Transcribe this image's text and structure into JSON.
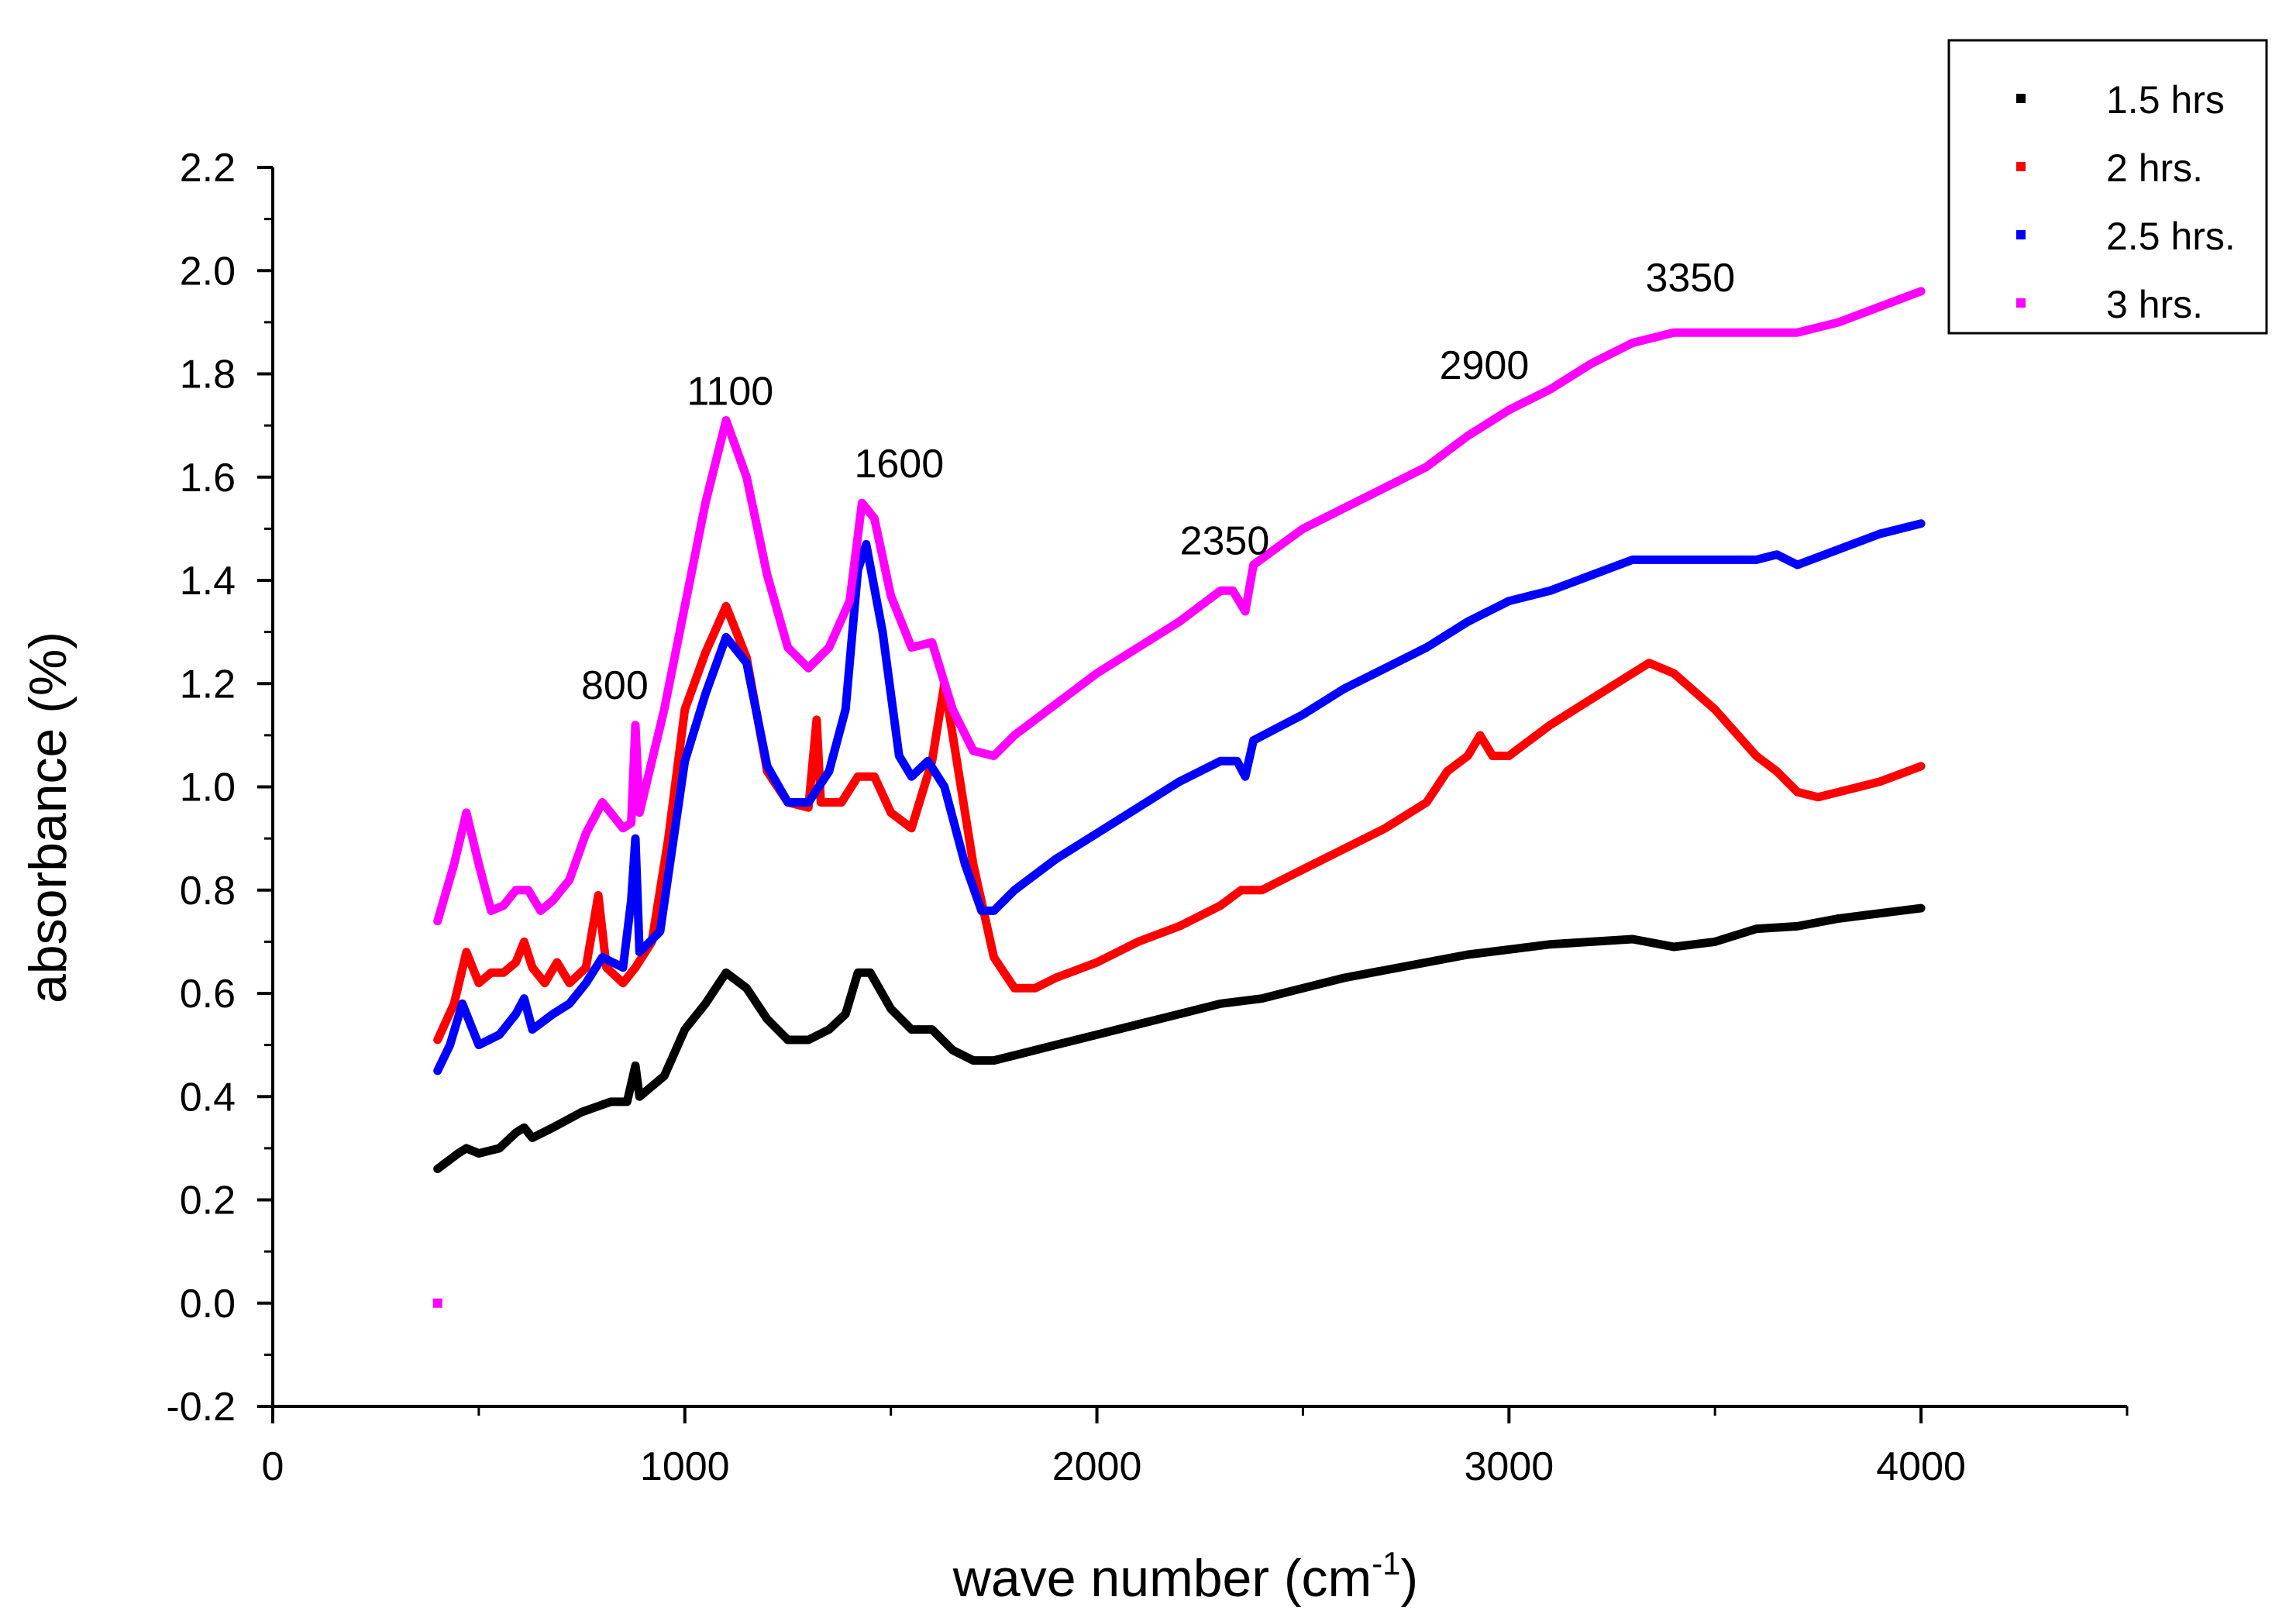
{
  "chart_data": {
    "type": "line",
    "title": "",
    "xlabel": "wave number (cm",
    "xlabel_sup": "-1",
    "xlabel_close": ")",
    "ylabel": "absorbance (%)",
    "xlim": [
      0,
      4500
    ],
    "ylim": [
      -0.2,
      2.2
    ],
    "x_ticks": [
      0,
      1000,
      2000,
      3000,
      4000
    ],
    "x_tick_labels": [
      "0",
      "1000",
      "2000",
      "3000",
      "4000"
    ],
    "y_ticks": [
      -0.2,
      0.0,
      0.2,
      0.4,
      0.6,
      0.8,
      1.0,
      1.2,
      1.4,
      1.6,
      1.8,
      2.0,
      2.2
    ],
    "y_tick_labels": [
      "-0.2",
      "0.0",
      "0.2",
      "0.4",
      "0.6",
      "0.8",
      "1.0",
      "1.2",
      "1.4",
      "1.6",
      "1.8",
      "2.0",
      "2.2"
    ],
    "grid": false,
    "legend_position": "top-right",
    "annotations": [
      {
        "text": "800",
        "x": 830,
        "y": 1.17
      },
      {
        "text": "1100",
        "x": 1110,
        "y": 1.74
      },
      {
        "text": "1600",
        "x": 1520,
        "y": 1.6
      },
      {
        "text": "2350",
        "x": 2310,
        "y": 1.45
      },
      {
        "text": "2900",
        "x": 2940,
        "y": 1.79
      },
      {
        "text": "3350",
        "x": 3440,
        "y": 1.96
      }
    ],
    "stray_points": [
      {
        "series": "3 hrs.",
        "x": 400,
        "y": 0.0
      }
    ],
    "series": [
      {
        "name": "1.5 hrs",
        "color": "#000000",
        "points": [
          [
            400,
            0.26
          ],
          [
            450,
            0.29
          ],
          [
            470,
            0.3
          ],
          [
            500,
            0.29
          ],
          [
            550,
            0.3
          ],
          [
            590,
            0.33
          ],
          [
            610,
            0.34
          ],
          [
            630,
            0.32
          ],
          [
            680,
            0.34
          ],
          [
            750,
            0.37
          ],
          [
            820,
            0.39
          ],
          [
            860,
            0.39
          ],
          [
            880,
            0.46
          ],
          [
            890,
            0.4
          ],
          [
            950,
            0.44
          ],
          [
            1000,
            0.53
          ],
          [
            1050,
            0.58
          ],
          [
            1100,
            0.64
          ],
          [
            1150,
            0.61
          ],
          [
            1200,
            0.55
          ],
          [
            1250,
            0.51
          ],
          [
            1300,
            0.51
          ],
          [
            1350,
            0.53
          ],
          [
            1390,
            0.56
          ],
          [
            1420,
            0.64
          ],
          [
            1450,
            0.64
          ],
          [
            1500,
            0.57
          ],
          [
            1550,
            0.53
          ],
          [
            1600,
            0.53
          ],
          [
            1650,
            0.49
          ],
          [
            1700,
            0.47
          ],
          [
            1750,
            0.47
          ],
          [
            1800,
            0.48
          ],
          [
            1900,
            0.5
          ],
          [
            2000,
            0.52
          ],
          [
            2100,
            0.54
          ],
          [
            2200,
            0.56
          ],
          [
            2300,
            0.58
          ],
          [
            2400,
            0.59
          ],
          [
            2500,
            0.61
          ],
          [
            2600,
            0.63
          ],
          [
            2700,
            0.645
          ],
          [
            2800,
            0.66
          ],
          [
            2900,
            0.675
          ],
          [
            3000,
            0.685
          ],
          [
            3100,
            0.695
          ],
          [
            3200,
            0.7
          ],
          [
            3300,
            0.705
          ],
          [
            3400,
            0.69
          ],
          [
            3500,
            0.7
          ],
          [
            3600,
            0.725
          ],
          [
            3700,
            0.73
          ],
          [
            3800,
            0.745
          ],
          [
            3900,
            0.755
          ],
          [
            4000,
            0.765
          ]
        ]
      },
      {
        "name": "2 hrs.",
        "color": "#ff0000",
        "points": [
          [
            400,
            0.51
          ],
          [
            440,
            0.58
          ],
          [
            470,
            0.68
          ],
          [
            500,
            0.62
          ],
          [
            530,
            0.64
          ],
          [
            560,
            0.64
          ],
          [
            590,
            0.66
          ],
          [
            610,
            0.7
          ],
          [
            630,
            0.65
          ],
          [
            660,
            0.62
          ],
          [
            690,
            0.66
          ],
          [
            720,
            0.62
          ],
          [
            760,
            0.65
          ],
          [
            790,
            0.79
          ],
          [
            810,
            0.65
          ],
          [
            850,
            0.62
          ],
          [
            880,
            0.65
          ],
          [
            920,
            0.7
          ],
          [
            960,
            0.9
          ],
          [
            1000,
            1.15
          ],
          [
            1050,
            1.26
          ],
          [
            1100,
            1.35
          ],
          [
            1150,
            1.25
          ],
          [
            1200,
            1.03
          ],
          [
            1250,
            0.97
          ],
          [
            1300,
            0.96
          ],
          [
            1320,
            1.13
          ],
          [
            1330,
            0.97
          ],
          [
            1380,
            0.97
          ],
          [
            1420,
            1.02
          ],
          [
            1460,
            1.02
          ],
          [
            1500,
            0.95
          ],
          [
            1550,
            0.92
          ],
          [
            1600,
            1.05
          ],
          [
            1630,
            1.2
          ],
          [
            1660,
            1.05
          ],
          [
            1700,
            0.85
          ],
          [
            1750,
            0.67
          ],
          [
            1800,
            0.61
          ],
          [
            1850,
            0.61
          ],
          [
            1900,
            0.63
          ],
          [
            2000,
            0.66
          ],
          [
            2100,
            0.7
          ],
          [
            2200,
            0.73
          ],
          [
            2300,
            0.77
          ],
          [
            2350,
            0.8
          ],
          [
            2400,
            0.8
          ],
          [
            2500,
            0.84
          ],
          [
            2600,
            0.88
          ],
          [
            2700,
            0.92
          ],
          [
            2800,
            0.97
          ],
          [
            2850,
            1.03
          ],
          [
            2900,
            1.06
          ],
          [
            2930,
            1.1
          ],
          [
            2960,
            1.06
          ],
          [
            3000,
            1.06
          ],
          [
            3100,
            1.12
          ],
          [
            3200,
            1.17
          ],
          [
            3300,
            1.22
          ],
          [
            3340,
            1.24
          ],
          [
            3400,
            1.22
          ],
          [
            3500,
            1.15
          ],
          [
            3600,
            1.06
          ],
          [
            3650,
            1.03
          ],
          [
            3700,
            0.99
          ],
          [
            3750,
            0.98
          ],
          [
            3800,
            0.99
          ],
          [
            3900,
            1.01
          ],
          [
            4000,
            1.04
          ]
        ]
      },
      {
        "name": "2.5 hrs.",
        "color": "#0000ff",
        "points": [
          [
            400,
            0.45
          ],
          [
            430,
            0.5
          ],
          [
            460,
            0.58
          ],
          [
            500,
            0.5
          ],
          [
            550,
            0.52
          ],
          [
            590,
            0.56
          ],
          [
            610,
            0.59
          ],
          [
            630,
            0.53
          ],
          [
            680,
            0.56
          ],
          [
            720,
            0.58
          ],
          [
            760,
            0.62
          ],
          [
            800,
            0.67
          ],
          [
            850,
            0.65
          ],
          [
            870,
            0.78
          ],
          [
            880,
            0.9
          ],
          [
            890,
            0.68
          ],
          [
            940,
            0.72
          ],
          [
            1000,
            1.05
          ],
          [
            1050,
            1.18
          ],
          [
            1100,
            1.29
          ],
          [
            1150,
            1.24
          ],
          [
            1200,
            1.04
          ],
          [
            1250,
            0.97
          ],
          [
            1300,
            0.97
          ],
          [
            1350,
            1.03
          ],
          [
            1390,
            1.15
          ],
          [
            1420,
            1.42
          ],
          [
            1440,
            1.47
          ],
          [
            1480,
            1.3
          ],
          [
            1520,
            1.06
          ],
          [
            1550,
            1.02
          ],
          [
            1590,
            1.05
          ],
          [
            1630,
            1.0
          ],
          [
            1680,
            0.85
          ],
          [
            1720,
            0.76
          ],
          [
            1750,
            0.76
          ],
          [
            1800,
            0.8
          ],
          [
            1900,
            0.86
          ],
          [
            2000,
            0.91
          ],
          [
            2100,
            0.96
          ],
          [
            2200,
            1.01
          ],
          [
            2300,
            1.05
          ],
          [
            2340,
            1.05
          ],
          [
            2360,
            1.02
          ],
          [
            2380,
            1.09
          ],
          [
            2500,
            1.14
          ],
          [
            2600,
            1.19
          ],
          [
            2700,
            1.23
          ],
          [
            2800,
            1.27
          ],
          [
            2900,
            1.32
          ],
          [
            3000,
            1.36
          ],
          [
            3100,
            1.38
          ],
          [
            3200,
            1.41
          ],
          [
            3300,
            1.44
          ],
          [
            3400,
            1.44
          ],
          [
            3500,
            1.44
          ],
          [
            3600,
            1.44
          ],
          [
            3650,
            1.45
          ],
          [
            3700,
            1.43
          ],
          [
            3800,
            1.46
          ],
          [
            3900,
            1.49
          ],
          [
            4000,
            1.51
          ]
        ]
      },
      {
        "name": "3 hrs.",
        "color": "#ff00ff",
        "points": [
          [
            400,
            0.74
          ],
          [
            440,
            0.85
          ],
          [
            470,
            0.95
          ],
          [
            500,
            0.85
          ],
          [
            530,
            0.76
          ],
          [
            560,
            0.77
          ],
          [
            590,
            0.8
          ],
          [
            620,
            0.8
          ],
          [
            650,
            0.76
          ],
          [
            680,
            0.78
          ],
          [
            720,
            0.82
          ],
          [
            760,
            0.91
          ],
          [
            800,
            0.97
          ],
          [
            850,
            0.92
          ],
          [
            870,
            0.93
          ],
          [
            880,
            1.12
          ],
          [
            890,
            0.95
          ],
          [
            950,
            1.15
          ],
          [
            1000,
            1.35
          ],
          [
            1050,
            1.55
          ],
          [
            1100,
            1.71
          ],
          [
            1150,
            1.6
          ],
          [
            1200,
            1.41
          ],
          [
            1250,
            1.27
          ],
          [
            1300,
            1.23
          ],
          [
            1350,
            1.27
          ],
          [
            1400,
            1.36
          ],
          [
            1430,
            1.55
          ],
          [
            1460,
            1.52
          ],
          [
            1500,
            1.37
          ],
          [
            1550,
            1.27
          ],
          [
            1600,
            1.28
          ],
          [
            1650,
            1.15
          ],
          [
            1700,
            1.07
          ],
          [
            1750,
            1.06
          ],
          [
            1800,
            1.1
          ],
          [
            1900,
            1.16
          ],
          [
            2000,
            1.22
          ],
          [
            2100,
            1.27
          ],
          [
            2200,
            1.32
          ],
          [
            2300,
            1.38
          ],
          [
            2330,
            1.38
          ],
          [
            2360,
            1.34
          ],
          [
            2380,
            1.43
          ],
          [
            2500,
            1.5
          ],
          [
            2600,
            1.54
          ],
          [
            2700,
            1.58
          ],
          [
            2800,
            1.62
          ],
          [
            2900,
            1.68
          ],
          [
            3000,
            1.73
          ],
          [
            3100,
            1.77
          ],
          [
            3200,
            1.82
          ],
          [
            3300,
            1.86
          ],
          [
            3400,
            1.88
          ],
          [
            3500,
            1.88
          ],
          [
            3600,
            1.88
          ],
          [
            3700,
            1.88
          ],
          [
            3800,
            1.9
          ],
          [
            3900,
            1.93
          ],
          [
            4000,
            1.96
          ]
        ]
      }
    ]
  }
}
